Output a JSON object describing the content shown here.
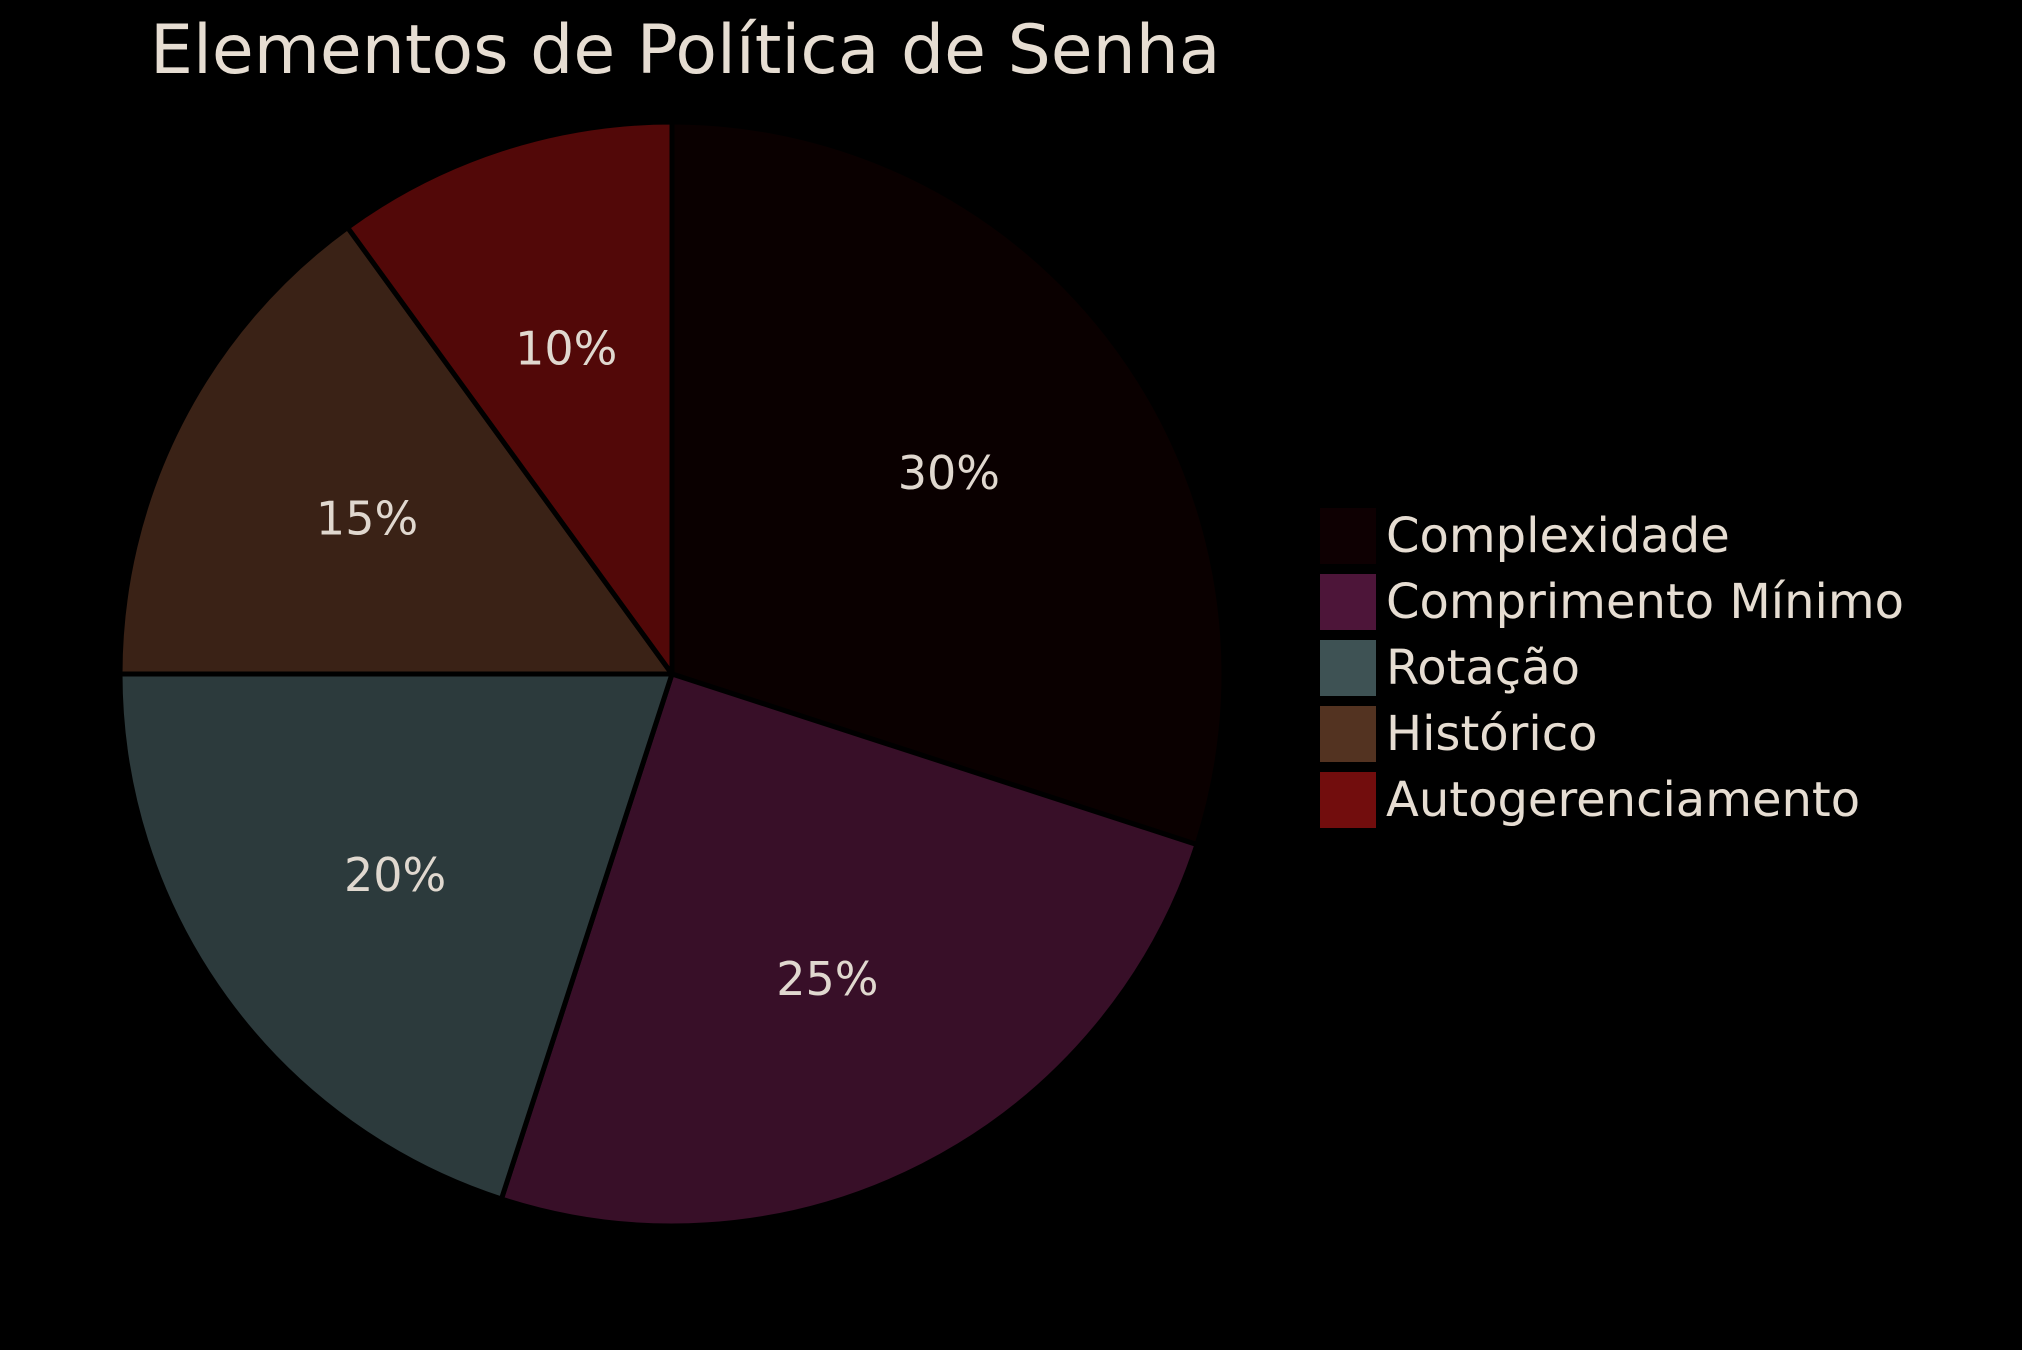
{
  "chart_data": {
    "type": "pie",
    "title": "Elementos de Política de Senha",
    "categories": [
      "Complexidade",
      "Comprimento Mínimo",
      "Rotação",
      "Histórico",
      "Autogerenciamento"
    ],
    "values": [
      30,
      25,
      20,
      15,
      10
    ],
    "value_labels": [
      "30%",
      "25%",
      "20%",
      "15%",
      "10%"
    ],
    "slice_colors": [
      "#0a0000",
      "#380f28",
      "#2c3a3c",
      "#3a2216",
      "#520808"
    ],
    "legend_colors": [
      "#0e0002",
      "#4d1539",
      "#3e5254",
      "#533321",
      "#720d0d"
    ],
    "edge_color": "#000000",
    "background": "#000000",
    "start_angle_deg": 90,
    "direction": "clockwise",
    "legend_position": "right"
  }
}
